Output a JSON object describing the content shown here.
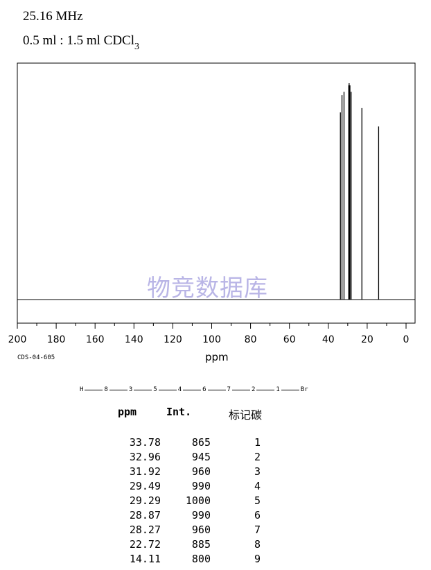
{
  "header": {
    "frequency": "25.16 MHz",
    "solvent_main": "0.5 ml : 1.5 ml CDCl",
    "solvent_sub": "3"
  },
  "watermark": "物竞数据库",
  "spectrum_code": "CDS-04-605",
  "chart_data": {
    "type": "line",
    "xlabel": "ppm",
    "xlim": [
      200,
      0
    ],
    "x_ticks": [
      "200",
      "180",
      "160",
      "140",
      "120",
      "100",
      "80",
      "60",
      "40",
      "20",
      "0"
    ],
    "peaks": [
      {
        "x": 33.78,
        "y": 865
      },
      {
        "x": 32.96,
        "y": 945
      },
      {
        "x": 31.92,
        "y": 960
      },
      {
        "x": 29.49,
        "y": 990
      },
      {
        "x": 29.29,
        "y": 1000
      },
      {
        "x": 28.87,
        "y": 990
      },
      {
        "x": 28.27,
        "y": 960
      },
      {
        "x": 22.72,
        "y": 885
      },
      {
        "x": 14.11,
        "y": 800
      }
    ]
  },
  "structure": [
    "H",
    "8",
    "3",
    "5",
    "4",
    "6",
    "7",
    "2",
    "1",
    "Br"
  ],
  "table": {
    "headers": [
      "ppm",
      "Int.",
      "标记碳"
    ],
    "rows": [
      [
        "33.78",
        "865",
        "1"
      ],
      [
        "32.96",
        "945",
        "2"
      ],
      [
        "31.92",
        "960",
        "3"
      ],
      [
        "29.49",
        "990",
        "4"
      ],
      [
        "29.29",
        "1000",
        "5"
      ],
      [
        "28.87",
        "990",
        "6"
      ],
      [
        "28.27",
        "960",
        "7"
      ],
      [
        "22.72",
        "885",
        "8"
      ],
      [
        "14.11",
        "800",
        "9"
      ]
    ]
  }
}
